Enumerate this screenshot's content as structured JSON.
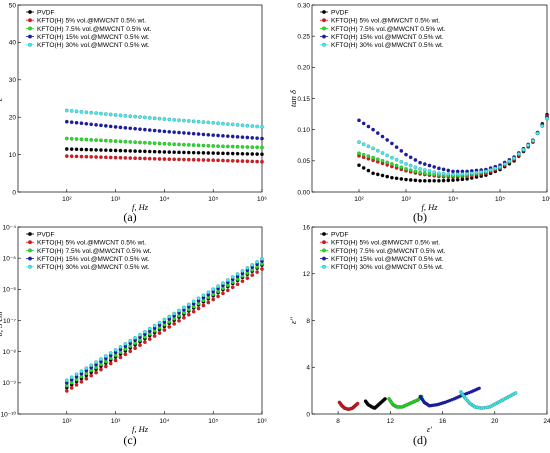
{
  "figure": {
    "captions": [
      "(a)",
      "(b)",
      "(c)",
      "(d)"
    ]
  },
  "colors": {
    "PVDF": "#000000",
    "KFTO5": "#e8141c",
    "KFTO7": "#1ee61e",
    "KFTO15": "#1a1ab4",
    "KFTO30": "#3cf0f0"
  },
  "chart_data": [
    {
      "type": "line",
      "panel": "a",
      "xlabel": "f, Hz",
      "ylabel": "ε'",
      "xscale": "log",
      "xlim": [
        10,
        1000000
      ],
      "ylim": [
        0,
        50
      ],
      "xticks": [
        "10²",
        "10³",
        "10⁴",
        "10⁵",
        "10⁶"
      ],
      "yticks": [
        "0",
        "10",
        "20",
        "30",
        "40",
        "50"
      ],
      "legend": "top-left",
      "x": [
        100,
        1000,
        10000,
        100000,
        1000000
      ],
      "series": [
        {
          "name": "PVDF",
          "values": [
            11.5,
            11.1,
            10.7,
            10.4,
            10.1
          ]
        },
        {
          "name": "KFTO(H) 5% vol.@MWCNT 0.5% wt.",
          "values": [
            9.6,
            9.2,
            8.8,
            8.5,
            8.1
          ]
        },
        {
          "name": "KFTO(H) 7.5% vol.@MWCNT 0.5% wt.",
          "values": [
            14.3,
            13.6,
            12.9,
            12.3,
            11.9
          ]
        },
        {
          "name": "KFTO(H) 15% vol.@MWCNT 0.5% wt.",
          "values": [
            18.8,
            17.4,
            16.2,
            15.2,
            14.3
          ]
        },
        {
          "name": "KFTO(H) 30% vol.@MWCNT 0.5% wt.",
          "values": [
            21.8,
            20.6,
            19.5,
            18.5,
            17.4
          ]
        }
      ]
    },
    {
      "type": "line",
      "panel": "b",
      "xlabel": "f, Hz",
      "ylabel": "tan δ",
      "xscale": "log",
      "xlim": [
        10,
        1000000
      ],
      "ylim": [
        0,
        0.3
      ],
      "xticks": [
        "10²",
        "10³",
        "10⁴",
        "10⁵",
        "10⁶"
      ],
      "yticks": [
        "0.00",
        "0.05",
        "0.10",
        "0.15",
        "0.20",
        "0.25",
        "0.30"
      ],
      "legend": "top-left",
      "x": [
        100,
        200,
        500,
        1000,
        2000,
        5000,
        10000,
        20000,
        50000,
        100000,
        200000,
        500000,
        1000000
      ],
      "series": [
        {
          "name": "PVDF",
          "values": [
            0.043,
            0.03,
            0.023,
            0.02,
            0.018,
            0.018,
            0.019,
            0.021,
            0.027,
            0.036,
            0.05,
            0.08,
            0.124
          ]
        },
        {
          "name": "KFTO(H) 5% vol.@MWCNT 0.5% wt.",
          "values": [
            0.058,
            0.051,
            0.041,
            0.034,
            0.029,
            0.025,
            0.024,
            0.025,
            0.03,
            0.038,
            0.052,
            0.08,
            0.122
          ]
        },
        {
          "name": "KFTO(H) 7.5% vol.@MWCNT 0.5% wt.",
          "values": [
            0.062,
            0.055,
            0.045,
            0.037,
            0.031,
            0.027,
            0.026,
            0.027,
            0.032,
            0.04,
            0.054,
            0.082,
            0.118
          ]
        },
        {
          "name": "KFTO(H) 15% vol.@MWCNT 0.5% wt.",
          "values": [
            0.115,
            0.1,
            0.078,
            0.06,
            0.047,
            0.038,
            0.033,
            0.033,
            0.036,
            0.043,
            0.056,
            0.083,
            0.12
          ]
        },
        {
          "name": "KFTO(H) 30% vol.@MWCNT 0.5% wt.",
          "values": [
            0.08,
            0.07,
            0.055,
            0.045,
            0.037,
            0.03,
            0.028,
            0.029,
            0.033,
            0.04,
            0.054,
            0.082,
            0.118
          ]
        }
      ]
    },
    {
      "type": "line",
      "panel": "c",
      "xlabel": "f, Hz",
      "ylabel": "σ, S·cm⁻¹",
      "xscale": "log",
      "yscale": "log",
      "xlim": [
        10,
        1000000
      ],
      "ylim": [
        1e-10,
        0.0001
      ],
      "xticks": [
        "10²",
        "10³",
        "10⁴",
        "10⁵",
        "10⁶"
      ],
      "yticks": [
        "10⁻¹⁰",
        "10⁻⁹",
        "10⁻⁸",
        "10⁻⁷",
        "10⁻⁶",
        "10⁻⁵",
        "10⁻⁴"
      ],
      "legend": "top-left",
      "x": [
        100,
        1000000
      ],
      "series": [
        {
          "name": "PVDF",
          "values": [
            7e-10,
            6e-06
          ]
        },
        {
          "name": "KFTO(H) 5% vol.@MWCNT 0.5% wt.",
          "values": [
            5.5e-10,
            4.5e-06
          ]
        },
        {
          "name": "KFTO(H) 7.5% vol.@MWCNT 0.5% wt.",
          "values": [
            8e-10,
            6.5e-06
          ]
        },
        {
          "name": "KFTO(H) 15% vol.@MWCNT 0.5% wt.",
          "values": [
            1e-09,
            8e-06
          ]
        },
        {
          "name": "KFTO(H) 30% vol.@MWCNT 0.5% wt.",
          "values": [
            1.2e-09,
            9.5e-06
          ]
        }
      ]
    },
    {
      "type": "scatter",
      "panel": "d",
      "xlabel": "ε'",
      "ylabel": "ε''",
      "xlim": [
        6,
        24
      ],
      "ylim": [
        0,
        16
      ],
      "xticks": [
        "8",
        "12",
        "16",
        "20",
        "24"
      ],
      "yticks": [
        "0",
        "4",
        "8",
        "12",
        "16"
      ],
      "legend": "top-left",
      "series": [
        {
          "name": "PVDF",
          "points": [
            [
              10.1,
              1.1
            ],
            [
              10.3,
              0.8
            ],
            [
              10.6,
              0.6
            ],
            [
              10.8,
              0.5
            ],
            [
              11.0,
              0.7
            ],
            [
              11.2,
              0.9
            ],
            [
              11.4,
              1.1
            ],
            [
              11.6,
              1.3
            ]
          ]
        },
        {
          "name": "KFTO(H) 5% vol.@MWCNT 0.5% wt.",
          "points": [
            [
              8.1,
              1.0
            ],
            [
              8.3,
              0.7
            ],
            [
              8.5,
              0.5
            ],
            [
              8.8,
              0.4
            ],
            [
              9.1,
              0.5
            ],
            [
              9.3,
              0.7
            ],
            [
              9.5,
              0.9
            ]
          ]
        },
        {
          "name": "KFTO(H) 7.5% vol.@MWCNT 0.5% wt.",
          "points": [
            [
              11.9,
              1.3
            ],
            [
              12.2,
              0.8
            ],
            [
              12.5,
              0.6
            ],
            [
              12.9,
              0.6
            ],
            [
              13.3,
              0.8
            ],
            [
              13.7,
              1.0
            ],
            [
              14.1,
              1.2
            ],
            [
              14.4,
              1.5
            ]
          ]
        },
        {
          "name": "KFTO(H) 15% vol.@MWCNT 0.5% wt.",
          "points": [
            [
              14.3,
              1.5
            ],
            [
              14.6,
              1.0
            ],
            [
              15.0,
              0.7
            ],
            [
              15.6,
              0.8
            ],
            [
              16.2,
              1.0
            ],
            [
              16.9,
              1.3
            ],
            [
              17.5,
              1.6
            ],
            [
              18.2,
              1.9
            ],
            [
              18.8,
              2.2
            ]
          ]
        },
        {
          "name": "KFTO(H) 30% vol.@MWCNT 0.5% wt.",
          "points": [
            [
              17.4,
              1.9
            ],
            [
              17.7,
              1.4
            ],
            [
              18.1,
              0.9
            ],
            [
              18.5,
              0.6
            ],
            [
              19.0,
              0.5
            ],
            [
              19.6,
              0.6
            ],
            [
              20.1,
              0.9
            ],
            [
              20.6,
              1.2
            ],
            [
              21.1,
              1.5
            ],
            [
              21.6,
              1.8
            ]
          ]
        }
      ]
    }
  ]
}
